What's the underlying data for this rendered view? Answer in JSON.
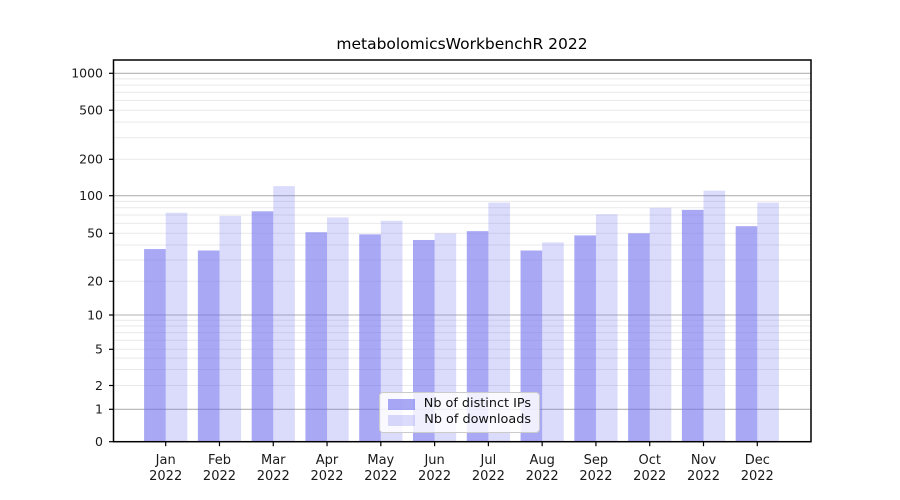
{
  "chart_data": {
    "type": "bar",
    "title": "metabolomicsWorkbenchR 2022",
    "categories": [
      "Jan",
      "Feb",
      "Mar",
      "Apr",
      "May",
      "Jun",
      "Jul",
      "Aug",
      "Sep",
      "Oct",
      "Nov",
      "Dec"
    ],
    "x_tick_second_line": "2022",
    "series": [
      {
        "name": "Nb of distinct IPs",
        "color": "#6e6eee",
        "opacity": 0.6,
        "values": [
          37,
          36,
          75,
          51,
          49,
          44,
          52,
          36,
          48,
          50,
          77,
          57
        ]
      },
      {
        "name": "Nb of downloads",
        "color": "#6e6eee",
        "opacity": 0.25,
        "values": [
          73,
          69,
          120,
          67,
          63,
          50,
          88,
          42,
          71,
          80,
          110,
          88
        ]
      }
    ],
    "yticks": [
      0,
      1,
      2,
      5,
      10,
      20,
      50,
      100,
      200,
      500,
      1000
    ],
    "ylim": [
      0,
      1000
    ],
    "y_scale": "log-like (compressed near zero)",
    "xlabel": "",
    "ylabel": "",
    "grid": "on (dark lines at 1,10,100,1000; faint minor lines)",
    "legend_position": "lower center inside plot"
  },
  "palette": {
    "grid_major": "#b2b2b2",
    "grid_minor": "#e9e9e9",
    "axis": "#000000",
    "tick_text": "#1a1a1a"
  }
}
